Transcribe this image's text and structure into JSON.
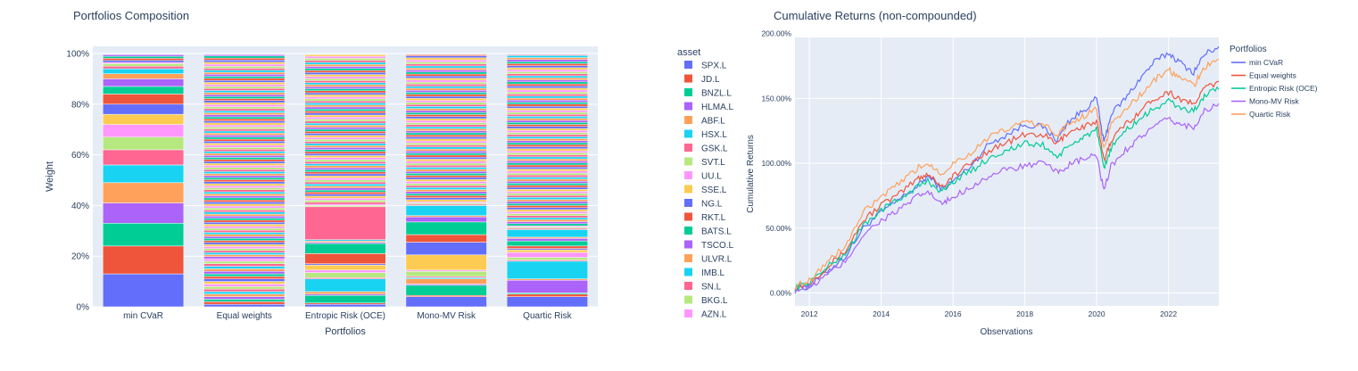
{
  "chart_data": [
    {
      "type": "bar",
      "stacked": true,
      "title": "Portfolios Composition",
      "xlabel": "Portfolios",
      "ylabel": "Weight",
      "ylim": [
        0,
        1
      ],
      "yticks": [
        "0%",
        "20%",
        "40%",
        "60%",
        "80%",
        "100%"
      ],
      "categories": [
        "min CVaR",
        "Equal weights",
        "Entropic Risk (OCE)",
        "Mono-MV Risk",
        "Quartic Risk"
      ],
      "legend_title": "asset",
      "legend_position": "right",
      "colors": [
        "#636efa",
        "#ef553b",
        "#00cc96",
        "#ab63fa",
        "#ffa15a",
        "#19d3f3",
        "#ff6692",
        "#b6e880",
        "#ff97ff",
        "#fecb52"
      ],
      "series": [
        {
          "name": "SPX.L",
          "values": [
            0.13,
            0.01,
            0.01,
            0.04,
            0.04
          ]
        },
        {
          "name": "JD.L",
          "values": [
            0.11,
            0.01,
            0.005,
            0.005,
            0.01
          ]
        },
        {
          "name": "BNZL.L",
          "values": [
            0.09,
            0.01,
            0.03,
            0.04,
            0.005
          ]
        },
        {
          "name": "HLMA.L",
          "values": [
            0.08,
            0.01,
            0.005,
            0.005,
            0.05
          ]
        },
        {
          "name": "ABF.L",
          "values": [
            0.08,
            0.01,
            0.01,
            0.02,
            0.005
          ]
        },
        {
          "name": "HSX.L",
          "values": [
            0.07,
            0.01,
            0.05,
            0.005,
            0.07
          ]
        },
        {
          "name": "GSK.L",
          "values": [
            0.06,
            0.01,
            0.005,
            0.005,
            0.005
          ]
        },
        {
          "name": "SVT.L",
          "values": [
            0.05,
            0.01,
            0.02,
            0.02,
            0.01
          ]
        },
        {
          "name": "UU.L",
          "values": [
            0.05,
            0.01,
            0.01,
            0.005,
            0.02
          ]
        },
        {
          "name": "SSE.L",
          "values": [
            0.04,
            0.01,
            0.02,
            0.06,
            0.01
          ]
        },
        {
          "name": "NG.L",
          "values": [
            0.04,
            0.01,
            0.005,
            0.05,
            0.005
          ]
        },
        {
          "name": "RKT.L",
          "values": [
            0.04,
            0.01,
            0.04,
            0.03,
            0.01
          ]
        },
        {
          "name": "BATS.L",
          "values": [
            0.03,
            0.01,
            0.04,
            0.05,
            0.02
          ]
        },
        {
          "name": "TSCO.L",
          "values": [
            0.03,
            0.01,
            0.005,
            0.02,
            0.01
          ]
        },
        {
          "name": "ULVR.L",
          "values": [
            0.02,
            0.01,
            0.005,
            0.005,
            0.005
          ]
        },
        {
          "name": "IMB.L",
          "values": [
            0.02,
            0.01,
            0.005,
            0.04,
            0.03
          ]
        },
        {
          "name": "SN.L",
          "values": [
            0.01,
            0.01,
            0.13,
            0.005,
            0.005
          ]
        },
        {
          "name": "BKG.L",
          "values": [
            0.01,
            0.01,
            0.005,
            0.005,
            0.005
          ]
        },
        {
          "name": "AZN.L",
          "values": [
            0.005,
            0.01,
            0.005,
            0.005,
            0.005
          ]
        }
      ]
    },
    {
      "type": "line",
      "title": "Cumulative Returns (non-compounded)",
      "xlabel": "Observations",
      "ylabel": "Cumulative Returns",
      "xlim": [
        2011.6,
        2023.4
      ],
      "ylim": [
        -0.1,
        1.97
      ],
      "xticks": [
        "2012",
        "2014",
        "2016",
        "2018",
        "2020",
        "2022"
      ],
      "yticks": [
        "0.00%",
        "50.00%",
        "100.00%",
        "150.00%",
        "200.00%"
      ],
      "legend_title": "Portfolios",
      "legend_position": "top-right",
      "series": [
        {
          "name": "min CVaR",
          "color": "#636efa",
          "x": [
            2011.6,
            2012.0,
            2012.5,
            2013.0,
            2013.5,
            2014.0,
            2014.5,
            2015.0,
            2015.3,
            2015.7,
            2016.0,
            2016.5,
            2017.0,
            2017.5,
            2018.0,
            2018.5,
            2018.9,
            2019.2,
            2019.6,
            2020.0,
            2020.2,
            2020.4,
            2020.8,
            2021.2,
            2021.6,
            2022.0,
            2022.3,
            2022.7,
            2023.0,
            2023.4
          ],
          "y": [
            0.03,
            0.05,
            0.17,
            0.28,
            0.5,
            0.62,
            0.72,
            0.82,
            0.9,
            0.8,
            0.86,
            0.98,
            1.15,
            1.22,
            1.3,
            1.28,
            1.18,
            1.32,
            1.4,
            1.5,
            1.15,
            1.38,
            1.5,
            1.65,
            1.78,
            1.85,
            1.78,
            1.7,
            1.84,
            1.9
          ]
        },
        {
          "name": "Equal weights",
          "color": "#ef553b",
          "x": [
            2011.6,
            2012.0,
            2012.5,
            2013.0,
            2013.5,
            2014.0,
            2014.5,
            2015.0,
            2015.3,
            2015.7,
            2016.0,
            2016.5,
            2017.0,
            2017.5,
            2018.0,
            2018.5,
            2018.9,
            2019.2,
            2019.6,
            2020.0,
            2020.2,
            2020.4,
            2020.8,
            2021.2,
            2021.6,
            2022.0,
            2022.3,
            2022.7,
            2023.0,
            2023.4
          ],
          "y": [
            0.04,
            0.08,
            0.2,
            0.32,
            0.56,
            0.68,
            0.76,
            0.88,
            0.92,
            0.82,
            0.9,
            1.0,
            1.1,
            1.16,
            1.22,
            1.22,
            1.15,
            1.24,
            1.28,
            1.32,
            1.02,
            1.18,
            1.3,
            1.4,
            1.5,
            1.55,
            1.5,
            1.45,
            1.58,
            1.63
          ]
        },
        {
          "name": "Entropic Risk (OCE)",
          "color": "#00cc96",
          "x": [
            2011.6,
            2012.0,
            2012.5,
            2013.0,
            2013.5,
            2014.0,
            2014.5,
            2015.0,
            2015.3,
            2015.7,
            2016.0,
            2016.5,
            2017.0,
            2017.5,
            2018.0,
            2018.5,
            2018.9,
            2019.2,
            2019.6,
            2020.0,
            2020.2,
            2020.4,
            2020.8,
            2021.2,
            2021.6,
            2022.0,
            2022.3,
            2022.7,
            2023.0,
            2023.4
          ],
          "y": [
            0.04,
            0.08,
            0.2,
            0.3,
            0.52,
            0.64,
            0.72,
            0.82,
            0.86,
            0.78,
            0.86,
            0.94,
            1.04,
            1.1,
            1.15,
            1.14,
            1.05,
            1.12,
            1.2,
            1.26,
            0.95,
            1.12,
            1.25,
            1.34,
            1.42,
            1.48,
            1.43,
            1.4,
            1.52,
            1.57
          ]
        },
        {
          "name": "Mono-MV Risk",
          "color": "#ab63fa",
          "x": [
            2011.6,
            2012.0,
            2012.5,
            2013.0,
            2013.5,
            2014.0,
            2014.5,
            2015.0,
            2015.3,
            2015.7,
            2016.0,
            2016.5,
            2017.0,
            2017.5,
            2018.0,
            2018.5,
            2018.9,
            2019.2,
            2019.6,
            2020.0,
            2020.2,
            2020.4,
            2020.8,
            2021.2,
            2021.6,
            2022.0,
            2022.3,
            2022.7,
            2023.0,
            2023.4
          ],
          "y": [
            0.02,
            0.04,
            0.14,
            0.24,
            0.45,
            0.56,
            0.64,
            0.74,
            0.78,
            0.68,
            0.74,
            0.82,
            0.9,
            0.95,
            0.98,
            1.0,
            0.93,
            0.98,
            1.03,
            1.06,
            0.78,
            0.98,
            1.1,
            1.2,
            1.28,
            1.34,
            1.3,
            1.28,
            1.4,
            1.46
          ]
        },
        {
          "name": "Quartic Risk",
          "color": "#ffa15a",
          "x": [
            2011.6,
            2012.0,
            2012.5,
            2013.0,
            2013.5,
            2014.0,
            2014.5,
            2015.0,
            2015.3,
            2015.7,
            2016.0,
            2016.5,
            2017.0,
            2017.5,
            2018.0,
            2018.5,
            2018.9,
            2019.2,
            2019.6,
            2020.0,
            2020.2,
            2020.4,
            2020.8,
            2021.2,
            2021.6,
            2022.0,
            2022.3,
            2022.7,
            2023.0,
            2023.4
          ],
          "y": [
            0.05,
            0.1,
            0.24,
            0.36,
            0.62,
            0.74,
            0.84,
            0.96,
            1.0,
            0.92,
            1.0,
            1.08,
            1.2,
            1.26,
            1.32,
            1.3,
            1.22,
            1.3,
            1.36,
            1.42,
            1.1,
            1.3,
            1.42,
            1.52,
            1.64,
            1.72,
            1.66,
            1.6,
            1.74,
            1.8
          ]
        }
      ]
    }
  ]
}
